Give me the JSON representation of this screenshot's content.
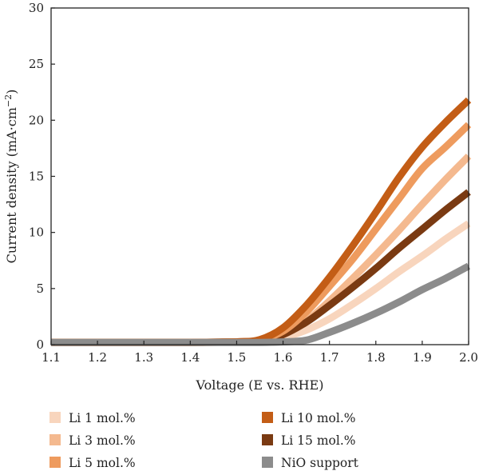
{
  "chart_data": {
    "type": "line",
    "title": "",
    "xlabel": "Voltage (E vs. RHE)",
    "ylabel_main": "Current density (mA·cm",
    "ylabel_sup": "−2",
    "ylabel_close": ")",
    "xlim": [
      1.1,
      2.0
    ],
    "ylim": [
      0,
      30
    ],
    "x_ticks": [
      "1.1",
      "1.2",
      "1.3",
      "1.4",
      "1.5",
      "1.6",
      "1.7",
      "1.8",
      "1.9",
      "2.0"
    ],
    "y_ticks": [
      "0",
      "5",
      "10",
      "15",
      "20",
      "25",
      "30"
    ],
    "grid": false,
    "legend_position": "bottom",
    "x": [
      1.1,
      1.2,
      1.3,
      1.4,
      1.5,
      1.55,
      1.6,
      1.65,
      1.7,
      1.75,
      1.8,
      1.85,
      1.9,
      1.95,
      2.0
    ],
    "series": [
      {
        "name": "Li 1 mol.%",
        "color": "#f8d5bd",
        "values": [
          0.2,
          0.2,
          0.2,
          0.2,
          0.25,
          0.3,
          0.6,
          1.3,
          2.3,
          3.6,
          5.0,
          6.5,
          7.9,
          9.4,
          10.8
        ]
      },
      {
        "name": "Li 3 mol.%",
        "color": "#f4b98f",
        "values": [
          0.2,
          0.2,
          0.2,
          0.2,
          0.25,
          0.35,
          0.9,
          2.1,
          3.9,
          5.9,
          8.0,
          10.2,
          12.5,
          14.7,
          16.8
        ]
      },
      {
        "name": "Li 5 mol.%",
        "color": "#ee9b5e",
        "values": [
          0.2,
          0.2,
          0.2,
          0.2,
          0.25,
          0.4,
          1.2,
          2.9,
          5.2,
          7.6,
          10.3,
          13.0,
          15.7,
          17.6,
          19.6
        ]
      },
      {
        "name": "Li 10 mol.%",
        "color": "#c35d16",
        "values": [
          0.2,
          0.2,
          0.2,
          0.2,
          0.25,
          0.45,
          1.5,
          3.5,
          6.0,
          8.8,
          11.8,
          14.9,
          17.6,
          19.8,
          21.8
        ]
      },
      {
        "name": "Li 15 mol.%",
        "color": "#7a3a12",
        "values": [
          0.2,
          0.2,
          0.2,
          0.2,
          0.25,
          0.35,
          0.9,
          2.0,
          3.5,
          5.1,
          6.8,
          8.6,
          10.3,
          12.0,
          13.6
        ]
      },
      {
        "name": "NiO support",
        "color": "#8c8c8c",
        "values": [
          0.2,
          0.2,
          0.2,
          0.2,
          0.2,
          0.2,
          0.25,
          0.4,
          1.1,
          1.9,
          2.8,
          3.8,
          4.9,
          5.9,
          7.0
        ]
      }
    ],
    "legend_order": [
      "Li 1 mol.%",
      "Li 3 mol.%",
      "Li 5 mol.%",
      "Li 10 mol.%",
      "Li 15 mol.%",
      "NiO support"
    ],
    "draw_order": [
      "Li 1 mol.%",
      "Li 3 mol.%",
      "Li 15 mol.%",
      "Li 5 mol.%",
      "Li 10 mol.%",
      "NiO support"
    ]
  }
}
